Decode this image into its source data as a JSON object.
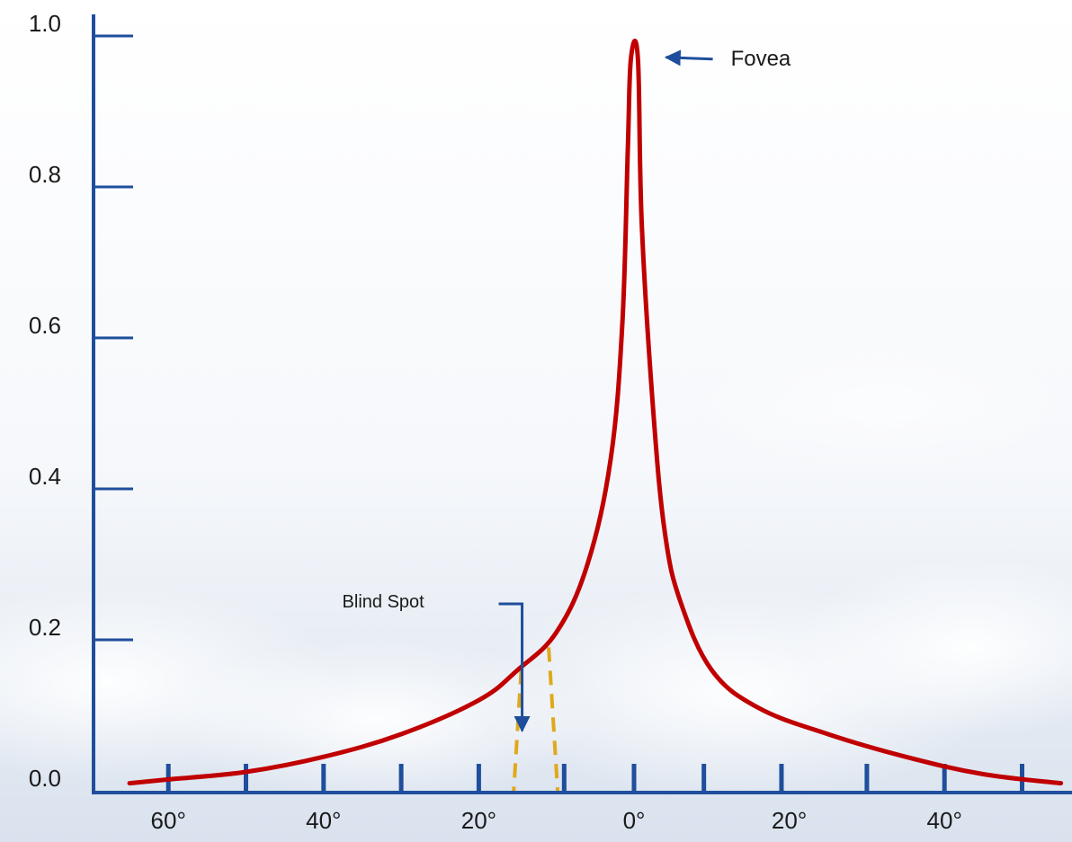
{
  "chart_data": {
    "type": "line",
    "title": "",
    "xlabel": "",
    "ylabel": "",
    "ylim": [
      0,
      1
    ],
    "xlim": [
      -70,
      55
    ],
    "grid": false,
    "y_ticks": [
      {
        "value": 0.0,
        "label": "0.0"
      },
      {
        "value": 0.2,
        "label": "0.2"
      },
      {
        "value": 0.4,
        "label": "0.4"
      },
      {
        "value": 0.6,
        "label": "0.6"
      },
      {
        "value": 0.8,
        "label": "0.8"
      },
      {
        "value": 1.0,
        "label": "1.0"
      }
    ],
    "x_tick_labels": [
      {
        "value": -60,
        "label": "60°"
      },
      {
        "value": -40,
        "label": "40°"
      },
      {
        "value": -20,
        "label": "20°"
      },
      {
        "value": 0,
        "label": "0°"
      },
      {
        "value": 20,
        "label": "20°"
      },
      {
        "value": 40,
        "label": "40°"
      }
    ],
    "x_minor_ticks": [
      -60,
      -50,
      -40,
      -30,
      -20,
      -9,
      0,
      9,
      19,
      30,
      40,
      50
    ],
    "series": [
      {
        "color": "#c00000",
        "points": [
          [
            -65,
            0.01
          ],
          [
            -60,
            0.015
          ],
          [
            -50,
            0.025
          ],
          [
            -40,
            0.045
          ],
          [
            -30,
            0.075
          ],
          [
            -20,
            0.12
          ],
          [
            -15,
            0.16
          ],
          [
            -10,
            0.21
          ],
          [
            -6,
            0.3
          ],
          [
            -3,
            0.44
          ],
          [
            -1.5,
            0.62
          ],
          [
            -0.8,
            0.85
          ],
          [
            -0.4,
            0.97
          ],
          [
            0.5,
            0.97
          ],
          [
            1.0,
            0.75
          ],
          [
            2.5,
            0.5
          ],
          [
            4,
            0.34
          ],
          [
            6,
            0.25
          ],
          [
            10,
            0.16
          ],
          [
            16,
            0.11
          ],
          [
            25,
            0.075
          ],
          [
            35,
            0.045
          ],
          [
            45,
            0.022
          ],
          [
            55,
            0.01
          ]
        ]
      }
    ],
    "annotations": [
      {
        "text": "Fovea",
        "target": [
          0.3,
          0.98
        ]
      },
      {
        "text": "Blind Spot",
        "target": [
          -15,
          0.07
        ],
        "region": [
          -14,
          -11
        ]
      }
    ],
    "colors": {
      "axis": "#1f4e9c",
      "curve": "#c00000",
      "blind_spot": "#e0a81c"
    }
  }
}
